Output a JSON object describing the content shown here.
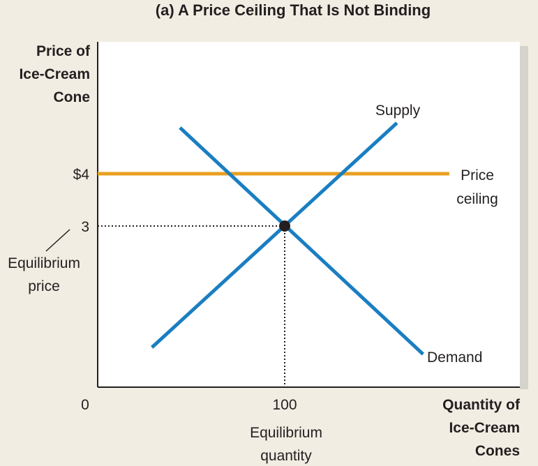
{
  "chart_data": {
    "type": "line",
    "title": "(a) A Price Ceiling That Is Not Binding",
    "ylabel": [
      "Price of",
      "Ice-Cream",
      "Cone"
    ],
    "xlabel": [
      "Quantity of",
      "Ice-Cream",
      "Cones"
    ],
    "xlim": [
      0,
      225
    ],
    "ylim": [
      0,
      6.6
    ],
    "x_ticks": [
      {
        "value": 0,
        "label": "0"
      },
      {
        "value": 100,
        "label": "100"
      }
    ],
    "y_ticks": [
      {
        "value": 4,
        "label": "$4"
      },
      {
        "value": 3,
        "label": "3"
      }
    ],
    "series": [
      {
        "name": "Supply",
        "color": "#1a7ec2",
        "points": [
          [
            29,
            0.68
          ],
          [
            160,
            4.97
          ]
        ]
      },
      {
        "name": "Demand",
        "color": "#1a7ec2",
        "points": [
          [
            44,
            4.88
          ],
          [
            174,
            0.55
          ]
        ]
      },
      {
        "name": "Price ceiling",
        "label_lines": [
          "Price",
          "ceiling"
        ],
        "color": "#e8a020",
        "points": [
          [
            0,
            4
          ],
          [
            188,
            4
          ]
        ]
      }
    ],
    "equilibrium": {
      "quantity": 100,
      "price": 3
    },
    "annotations": {
      "equilibrium_price": [
        "Equilibrium",
        "price"
      ],
      "equilibrium_quantity": [
        "Equilibrium",
        "quantity"
      ]
    }
  }
}
